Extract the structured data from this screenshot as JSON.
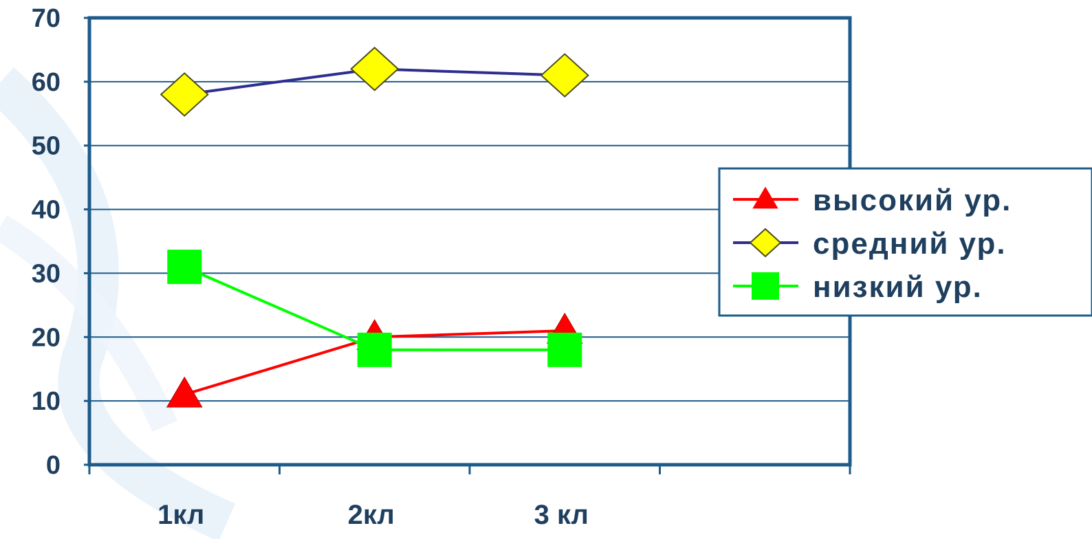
{
  "chart_data": {
    "type": "line",
    "categories": [
      "1кл",
      "2кл",
      "3 кл"
    ],
    "ylim": [
      0,
      70
    ],
    "y_ticks": [
      0,
      10,
      20,
      30,
      40,
      50,
      60,
      70
    ],
    "grid": true,
    "legend_position": "right",
    "series": [
      {
        "name": "высокий ур.",
        "values": [
          11,
          20,
          21
        ],
        "color": "#ff0000",
        "marker": "triangle"
      },
      {
        "name": "средний ур.",
        "values": [
          58,
          62,
          61
        ],
        "color": "#2e2e8f",
        "marker": "diamond",
        "marker_fill": "#ffff00"
      },
      {
        "name": "низкий ур.",
        "values": [
          31,
          18,
          18
        ],
        "color": "#00ff00",
        "marker": "square"
      }
    ]
  },
  "colors": {
    "frame": "#1d5b8a",
    "text": "#1f3f5f",
    "background": "#ffffff"
  }
}
